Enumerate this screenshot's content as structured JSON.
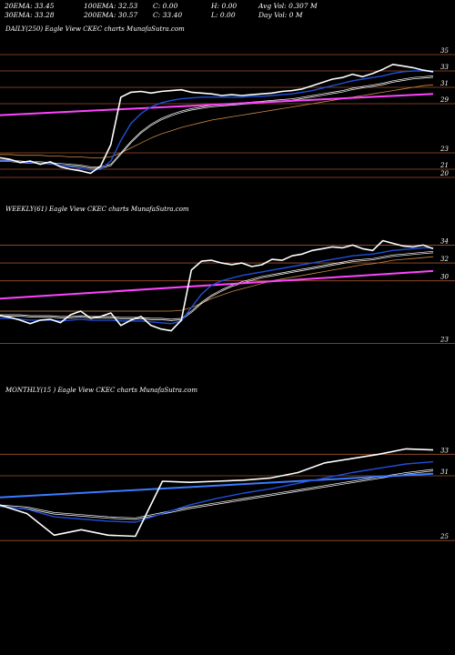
{
  "header": {
    "row1": [
      "20EMA: 33.45",
      "100EMA: 32.53",
      "C: 0.00",
      "H: 0.00",
      "Avg Vol: 0.307 M"
    ],
    "row2": [
      "30EMA: 33.28",
      "200EMA: 30.57",
      "C: 33.40",
      "L: 0.00",
      "Day Vol: 0  M"
    ]
  },
  "colors": {
    "background": "#000000",
    "price": "#ffffff",
    "ema_fast": "#1f4fd8",
    "ema_slow": "#ffffff",
    "ema_long": "#cc8844",
    "trend": "#ff44ff",
    "monthly_trend": "#3a7bff",
    "level_line": "#a0522d"
  },
  "chart_data": [
    {
      "type": "line",
      "title": "DAILY(250) Eagle   View  CKEC charts MunafaSutra.com",
      "ylim": [
        19,
        37
      ],
      "level_ticks": [
        35,
        33,
        31,
        29,
        23,
        21,
        20
      ],
      "series": [
        {
          "role": "price",
          "values": [
            22.4,
            22.2,
            21.8,
            22.0,
            21.6,
            21.9,
            21.3,
            21.0,
            20.8,
            20.5,
            21.4,
            24.0,
            29.8,
            30.4,
            30.5,
            30.3,
            30.5,
            30.6,
            30.7,
            30.4,
            30.3,
            30.2,
            30.0,
            30.1,
            30.0,
            30.1,
            30.2,
            30.3,
            30.5,
            30.6,
            30.8,
            31.2,
            31.6,
            32.0,
            32.2,
            32.6,
            32.3,
            32.7,
            33.2,
            33.8,
            33.6,
            33.4,
            33.1,
            32.9
          ]
        },
        {
          "role": "ema_fast",
          "values": [
            22.0,
            22.0,
            21.9,
            21.8,
            21.7,
            21.7,
            21.5,
            21.3,
            21.1,
            20.9,
            21.0,
            22.0,
            24.5,
            26.6,
            27.8,
            28.6,
            29.1,
            29.4,
            29.6,
            29.7,
            29.8,
            29.8,
            29.8,
            29.8,
            29.8,
            29.9,
            29.9,
            30.0,
            30.1,
            30.2,
            30.4,
            30.6,
            30.9,
            31.2,
            31.5,
            31.8,
            32.0,
            32.2,
            32.4,
            32.7,
            32.9,
            33.0,
            33.0,
            33.0
          ]
        },
        {
          "role": "ema_slow",
          "values": [
            22.1,
            22.1,
            22.0,
            21.9,
            21.9,
            21.8,
            21.7,
            21.6,
            21.5,
            21.3,
            21.3,
            21.6,
            23.0,
            24.4,
            25.6,
            26.5,
            27.2,
            27.7,
            28.1,
            28.4,
            28.6,
            28.8,
            28.9,
            29.0,
            29.1,
            29.2,
            29.3,
            29.4,
            29.5,
            29.6,
            29.8,
            30.0,
            30.2,
            30.4,
            30.6,
            30.9,
            31.1,
            31.3,
            31.5,
            31.8,
            32.0,
            32.2,
            32.3,
            32.4
          ]
        },
        {
          "role": "ema_long",
          "values": [
            22.8,
            22.8,
            22.7,
            22.7,
            22.7,
            22.6,
            22.6,
            22.5,
            22.5,
            22.4,
            22.4,
            22.5,
            23.0,
            23.6,
            24.2,
            24.8,
            25.3,
            25.7,
            26.1,
            26.4,
            26.7,
            27.0,
            27.2,
            27.4,
            27.6,
            27.8,
            28.0,
            28.2,
            28.4,
            28.6,
            28.8,
            29.0,
            29.2,
            29.4,
            29.6,
            29.8,
            30.0,
            30.2,
            30.4,
            30.6,
            30.8,
            31.0,
            31.2,
            31.3
          ]
        },
        {
          "role": "trend",
          "values": [
            27.6,
            30.2
          ]
        }
      ]
    },
    {
      "type": "line",
      "title": "WEEKLY(61) Eagle   View  CKEC charts MunafaSutra.com",
      "ylim": [
        21,
        37
      ],
      "level_ticks": [
        34,
        32,
        30,
        23
      ],
      "series": [
        {
          "role": "price",
          "values": [
            26.1,
            25.9,
            25.6,
            25.2,
            25.6,
            25.7,
            25.3,
            26.2,
            26.6,
            25.8,
            26.0,
            26.4,
            25.0,
            25.6,
            26.0,
            25.0,
            24.6,
            24.4,
            25.6,
            31.2,
            32.2,
            32.3,
            32.0,
            31.8,
            32.0,
            31.6,
            31.8,
            32.4,
            32.3,
            32.8,
            33.0,
            33.4,
            33.6,
            33.8,
            33.7,
            34.0,
            33.6,
            33.4,
            34.5,
            34.2,
            33.9,
            33.8,
            34.0,
            33.6
          ]
        },
        {
          "role": "ema_fast",
          "values": [
            25.8,
            25.8,
            25.7,
            25.6,
            25.6,
            25.6,
            25.5,
            25.6,
            25.7,
            25.6,
            25.6,
            25.6,
            25.5,
            25.5,
            25.5,
            25.4,
            25.3,
            25.2,
            25.5,
            27.0,
            28.5,
            29.5,
            30.0,
            30.3,
            30.6,
            30.8,
            31.0,
            31.2,
            31.4,
            31.6,
            31.8,
            32.0,
            32.2,
            32.4,
            32.6,
            32.8,
            32.9,
            33.0,
            33.2,
            33.4,
            33.5,
            33.6,
            33.7,
            33.7
          ]
        },
        {
          "role": "ema_slow",
          "values": [
            26.2,
            26.2,
            26.2,
            26.1,
            26.1,
            26.1,
            26.0,
            26.0,
            26.1,
            26.0,
            26.0,
            26.0,
            25.9,
            25.9,
            25.9,
            25.8,
            25.8,
            25.7,
            25.8,
            26.6,
            27.6,
            28.4,
            29.0,
            29.5,
            29.9,
            30.2,
            30.5,
            30.7,
            30.9,
            31.1,
            31.3,
            31.5,
            31.7,
            31.9,
            32.1,
            32.3,
            32.4,
            32.5,
            32.7,
            32.9,
            33.0,
            33.1,
            33.2,
            33.3
          ]
        },
        {
          "role": "ema_long",
          "values": [
            26.6,
            26.6,
            26.6,
            26.6,
            26.6,
            26.6,
            26.6,
            26.6,
            26.6,
            26.6,
            26.6,
            26.6,
            26.6,
            26.6,
            26.6,
            26.6,
            26.6,
            26.6,
            26.7,
            27.0,
            27.5,
            28.0,
            28.4,
            28.8,
            29.1,
            29.4,
            29.7,
            30.0,
            30.2,
            30.4,
            30.6,
            30.8,
            31.0,
            31.2,
            31.4,
            31.6,
            31.8,
            31.9,
            32.1,
            32.3,
            32.4,
            32.5,
            32.6,
            32.7
          ]
        },
        {
          "role": "trend",
          "values": [
            28.0,
            31.1
          ]
        }
      ]
    },
    {
      "type": "line",
      "title": "MONTHLY(15                     ) Eagle  View  CKEC charts MunafaSutra.com",
      "ylim": [
        23.5,
        38
      ],
      "level_ticks": [
        33,
        31,
        25
      ],
      "series": [
        {
          "role": "price",
          "values": [
            28.3,
            27.5,
            25.5,
            26.0,
            25.5,
            25.4,
            30.5,
            30.4,
            30.5,
            30.6,
            30.8,
            31.3,
            32.2,
            32.6,
            33.0,
            33.5,
            33.4
          ]
        },
        {
          "role": "ema_fast",
          "values": [
            28.2,
            27.9,
            27.2,
            27.0,
            26.8,
            26.7,
            27.5,
            28.3,
            28.9,
            29.4,
            29.8,
            30.3,
            30.8,
            31.3,
            31.7,
            32.1,
            32.3
          ]
        },
        {
          "role": "ema_slow",
          "values": [
            28.3,
            28.1,
            27.6,
            27.4,
            27.2,
            27.1,
            27.6,
            28.1,
            28.5,
            28.9,
            29.3,
            29.7,
            30.1,
            30.5,
            30.9,
            31.3,
            31.6
          ]
        },
        {
          "role": "trend",
          "values": [
            29.0,
            31.2
          ]
        }
      ]
    }
  ]
}
